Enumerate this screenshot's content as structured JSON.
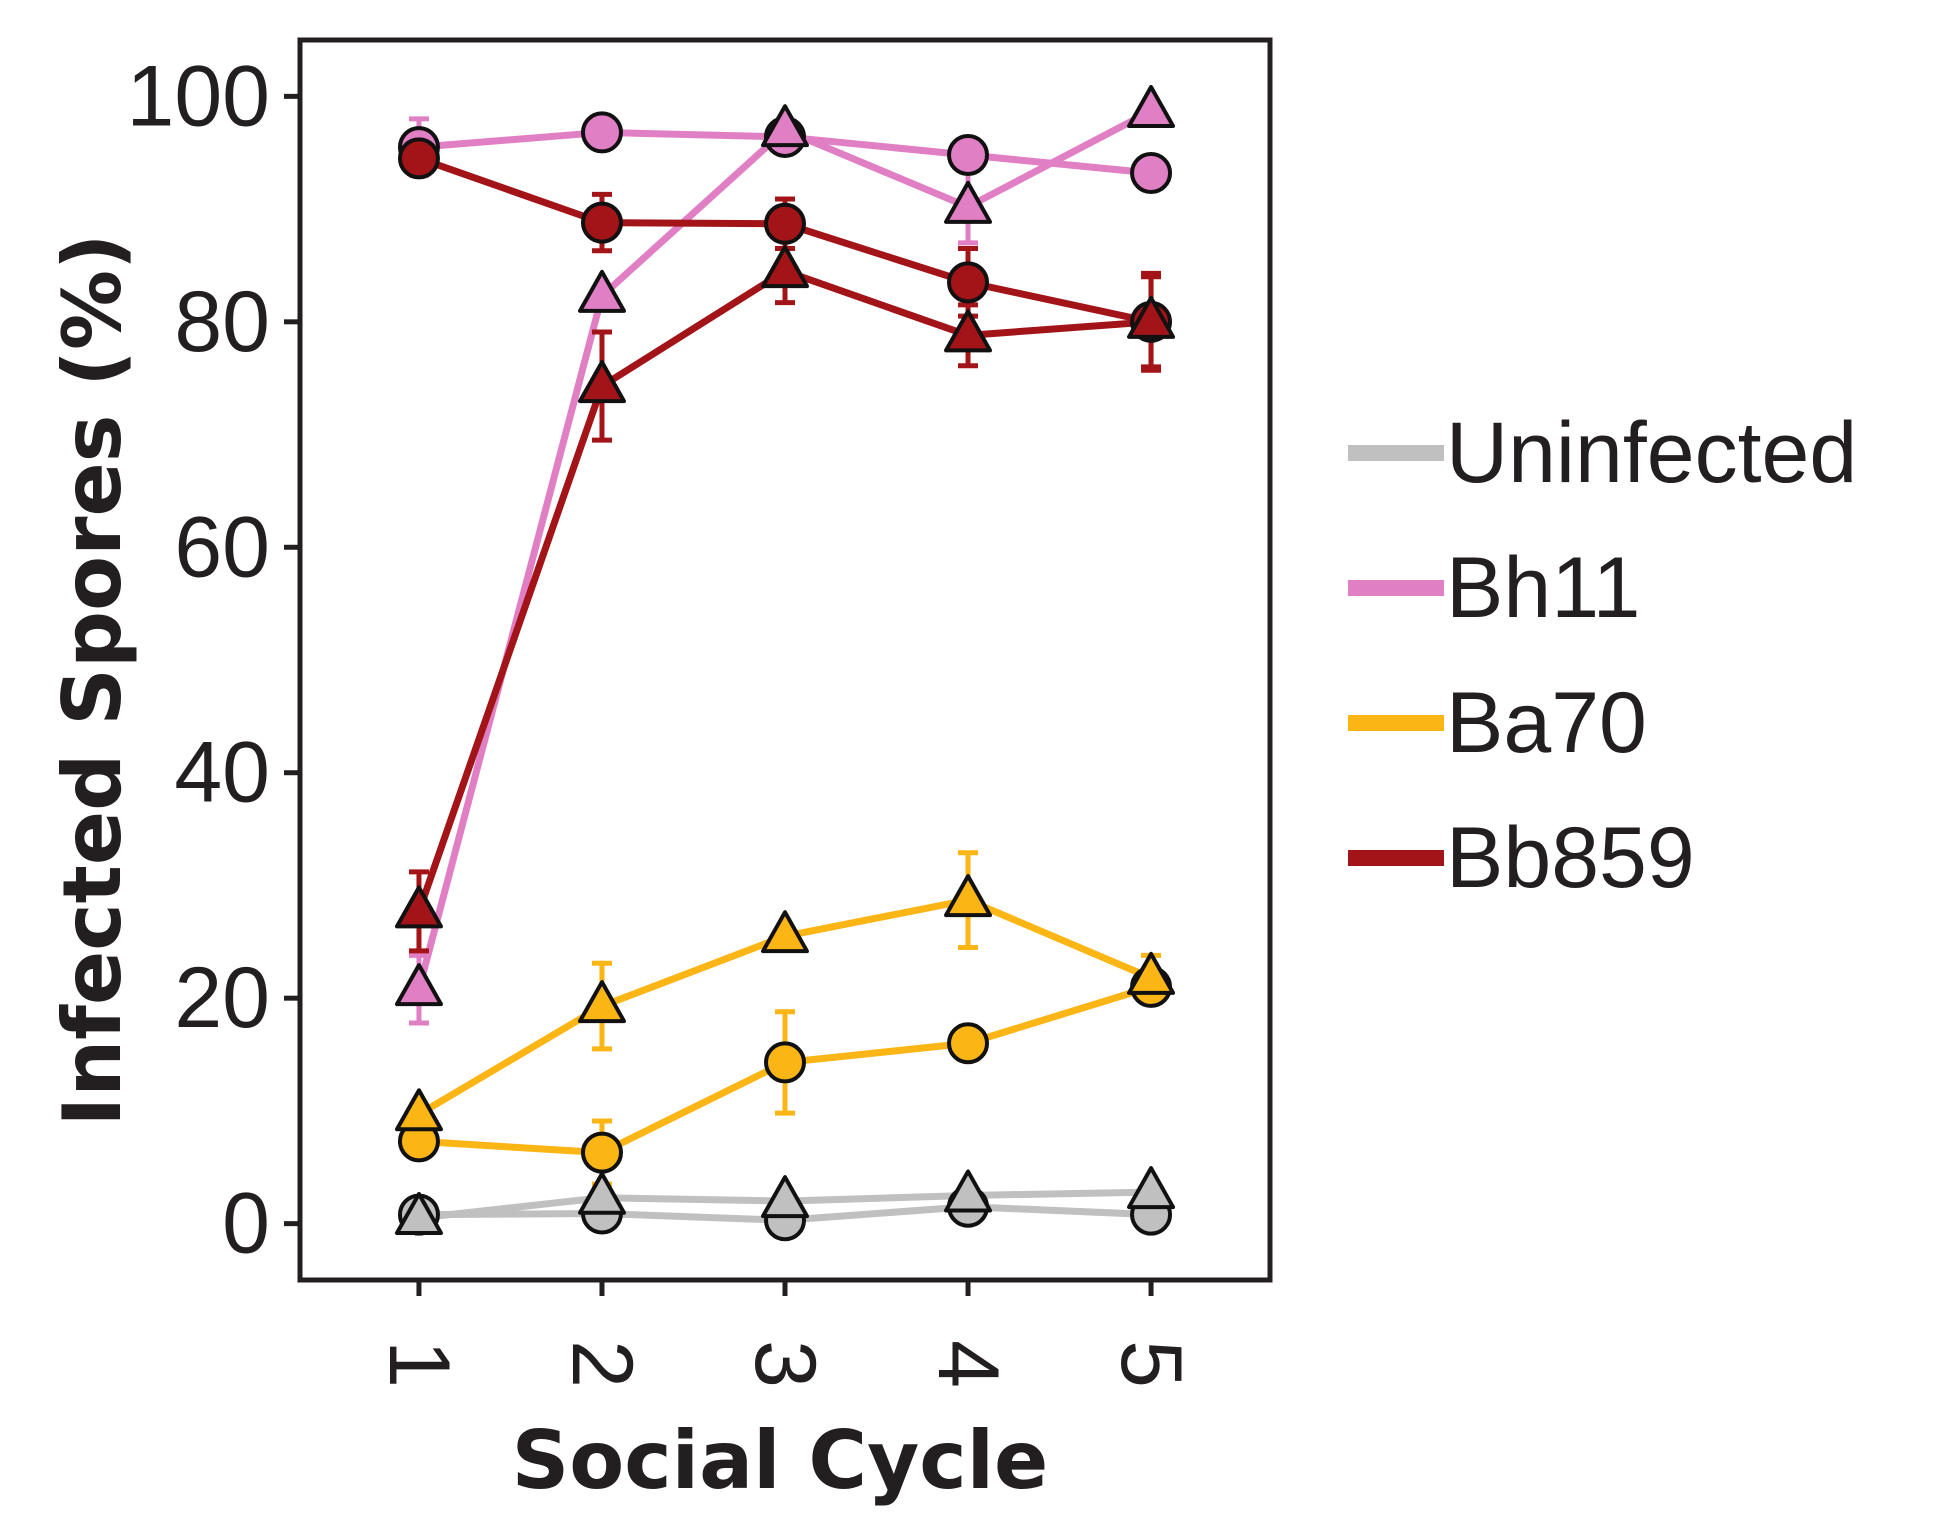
{
  "chart_data": {
    "type": "line",
    "title": "",
    "xlabel": "Social Cycle",
    "ylabel": "Infected Spores (%)",
    "x": [
      1,
      2,
      3,
      4,
      5
    ],
    "x_tick_labels": [
      "1",
      "2",
      "3",
      "4",
      "5"
    ],
    "xlim": [
      0.35,
      5.65
    ],
    "ylim": [
      -5,
      105
    ],
    "y_ticks": [
      0,
      20,
      40,
      60,
      80,
      100
    ],
    "y_tick_labels": [
      "0",
      "20",
      "40",
      "60",
      "80",
      "100"
    ],
    "grid": false,
    "legend_position": "right",
    "legend": [
      {
        "label": "Uninfected",
        "color": "#c0c0c0"
      },
      {
        "label": "Bh11",
        "color": "#e17fc5"
      },
      {
        "label": "Ba70",
        "color": "#fbb514"
      },
      {
        "label": "Bb859",
        "color": "#a31419"
      }
    ],
    "series": [
      {
        "name": "Uninfected",
        "marker": "circle",
        "color": "#c0c0c0",
        "values": [
          0.8,
          0.9,
          0.3,
          1.5,
          0.8
        ],
        "error": [
          0,
          0,
          0,
          0,
          0
        ]
      },
      {
        "name": "Uninfected",
        "marker": "triangle",
        "color": "#c0c0c0",
        "values": [
          0.5,
          2.3,
          2.0,
          2.5,
          2.8
        ],
        "error": [
          0,
          0,
          0,
          0,
          0
        ]
      },
      {
        "name": "Ba70",
        "marker": "circle",
        "color": "#fbb514",
        "values": [
          7.3,
          6.3,
          14.3,
          16.0,
          21.0
        ],
        "error": [
          0,
          2.8,
          4.5,
          0,
          0
        ]
      },
      {
        "name": "Ba70",
        "marker": "triangle",
        "color": "#fbb514",
        "values": [
          9.7,
          19.3,
          25.5,
          28.7,
          21.8
        ],
        "error": [
          0,
          3.8,
          0,
          4.2,
          2.0
        ]
      },
      {
        "name": "Bh11",
        "marker": "circle",
        "color": "#e17fc5",
        "values": [
          95.5,
          96.8,
          96.4,
          94.8,
          93.2
        ],
        "error": [
          2.5,
          0,
          0,
          0,
          0
        ]
      },
      {
        "name": "Bh11",
        "marker": "triangle",
        "color": "#e17fc5",
        "values": [
          20.8,
          82.3,
          97.0,
          90.2,
          98.7
        ],
        "error": [
          3.0,
          0,
          0,
          3.2,
          0
        ]
      },
      {
        "name": "Bb859",
        "marker": "circle",
        "color": "#a31419",
        "values": [
          94.5,
          88.8,
          88.7,
          83.5,
          80.0
        ],
        "error": [
          0,
          2.5,
          2.2,
          3.0,
          4.0
        ]
      },
      {
        "name": "Bb859",
        "marker": "triangle",
        "color": "#a31419",
        "values": [
          27.7,
          74.3,
          84.5,
          78.8,
          80.0
        ],
        "error": [
          3.5,
          4.8,
          2.8,
          2.7,
          4.3
        ]
      }
    ]
  }
}
